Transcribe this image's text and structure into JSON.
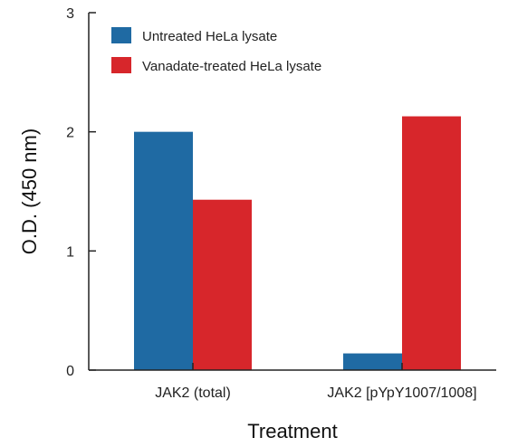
{
  "chart_data": {
    "type": "bar",
    "categories": [
      "JAK2 (total)",
      "JAK2 [pYpY1007/1008]"
    ],
    "series": [
      {
        "name": "Untreated HeLa lysate",
        "values": [
          2.0,
          0.14
        ],
        "color": "#1f6aa3"
      },
      {
        "name": "Vanadate-treated HeLa lysate",
        "values": [
          1.43,
          2.13
        ],
        "color": "#d7262b"
      }
    ],
    "xlabel": "Treatment",
    "ylabel": "O.D. (450 nm)",
    "ylim": [
      0,
      3
    ],
    "yticks": [
      "0",
      "1",
      "2",
      "3"
    ],
    "grid": false,
    "legend_position": "top-left"
  }
}
